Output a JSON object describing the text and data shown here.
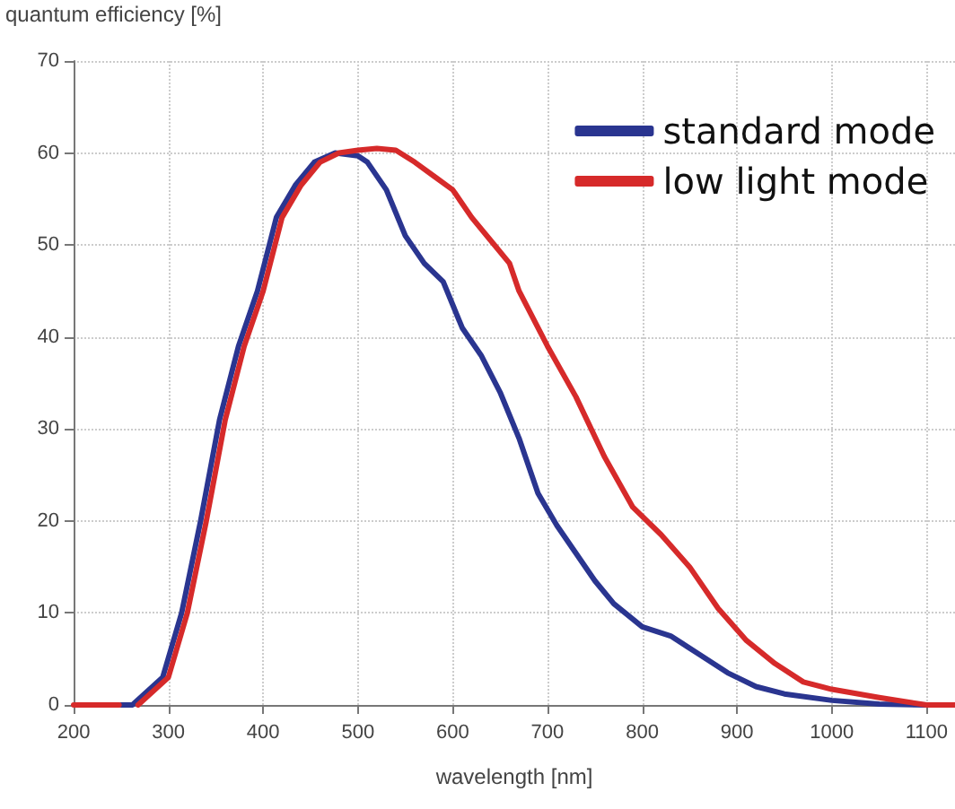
{
  "chart_data": {
    "type": "line",
    "xlabel": "wavelength [nm]",
    "ylabel": "quantum efficiency [%]",
    "xlim": [
      200,
      1130
    ],
    "xticks": [
      200,
      300,
      400,
      500,
      600,
      700,
      800,
      900,
      1000,
      1100
    ],
    "ylim": [
      0,
      70
    ],
    "yticks": [
      0,
      10,
      20,
      30,
      40,
      50,
      60,
      70
    ],
    "grid": true,
    "legend": "top right",
    "marker": "none",
    "line_style": "solid",
    "series": [
      {
        "name": "standard mode",
        "color": "#2a3590",
        "x": [
          250,
          262,
          294,
          314,
          334,
          354,
          374,
          394,
          414,
          434,
          454,
          476,
          500,
          510,
          530,
          550,
          570,
          590,
          610,
          630,
          650,
          670,
          690,
          710,
          730,
          750,
          770,
          800,
          830,
          860,
          890,
          920,
          950,
          1000,
          1050,
          1100,
          1130
        ],
        "values": [
          0,
          0,
          3,
          10,
          20,
          31,
          39,
          45,
          53,
          56.5,
          59,
          60,
          59.7,
          59,
          56,
          51,
          48,
          46,
          41,
          38,
          34,
          29,
          23,
          19.5,
          16.5,
          13.5,
          11,
          8.5,
          7.5,
          5.5,
          3.5,
          2,
          1.2,
          0.5,
          0.1,
          0,
          0
        ]
      },
      {
        "name": "low light mode",
        "color": "#d62a2a",
        "x": [
          200,
          248,
          null,
          268,
          300,
          320,
          340,
          360,
          380,
          400,
          420,
          440,
          460,
          480,
          500,
          520,
          540,
          560,
          580,
          600,
          620,
          640,
          660,
          670,
          700,
          730,
          760,
          790,
          820,
          850,
          880,
          910,
          940,
          970,
          1000,
          1050,
          1100,
          1130
        ],
        "values": [
          0,
          0,
          null,
          0,
          3,
          10,
          20,
          31,
          39,
          45,
          53,
          56.5,
          59,
          60,
          60.3,
          60.5,
          60.3,
          59,
          57.5,
          56,
          53,
          50.5,
          48,
          45,
          39,
          33.5,
          27,
          21.5,
          18.5,
          15,
          10.5,
          7,
          4.5,
          2.5,
          1.7,
          0.8,
          0,
          0
        ]
      }
    ]
  }
}
